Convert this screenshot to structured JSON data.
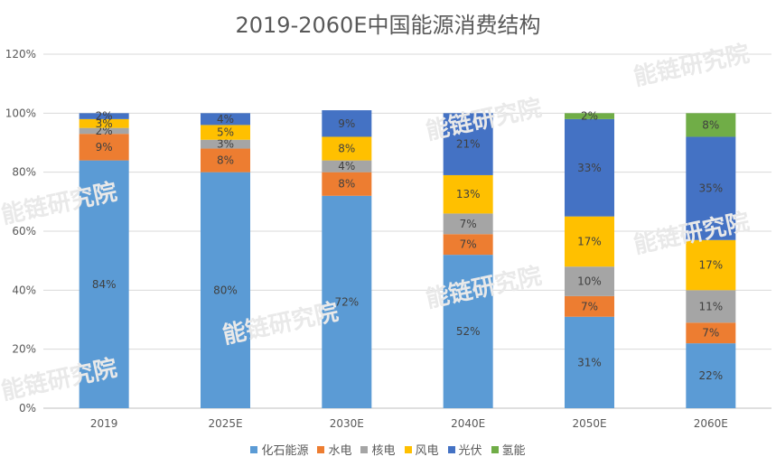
{
  "watermark_text": "能链研究院",
  "chart_data": {
    "type": "bar",
    "stacked": true,
    "title": "2019-2060E中国能源消费结构",
    "categories": [
      "2019",
      "2025E",
      "2030E",
      "2040E",
      "2050E",
      "2060E"
    ],
    "ylim": [
      0,
      120
    ],
    "yticks": [
      "0%",
      "20%",
      "40%",
      "60%",
      "80%",
      "100%",
      "120%"
    ],
    "legend_position": "bottom",
    "grid": true,
    "series": [
      {
        "name": "化石能源",
        "color": "#5b9bd5",
        "values": [
          84,
          80,
          72,
          52,
          31,
          22
        ],
        "labels": [
          "84%",
          "80%",
          "72%",
          "52%",
          "31%",
          "22%"
        ]
      },
      {
        "name": "水电",
        "color": "#ed7d31",
        "values": [
          9,
          8,
          8,
          7,
          7,
          7
        ],
        "labels": [
          "9%",
          "8%",
          "8%",
          "7%",
          "7%",
          "7%"
        ]
      },
      {
        "name": "核电",
        "color": "#a5a5a5",
        "values": [
          2,
          3,
          4,
          7,
          10,
          11
        ],
        "labels": [
          "2%",
          "3%",
          "4%",
          "7%",
          "10%",
          "11%"
        ]
      },
      {
        "name": "风电",
        "color": "#ffc000",
        "values": [
          3,
          5,
          8,
          13,
          17,
          17
        ],
        "labels": [
          "3%",
          "5%",
          "8%",
          "13%",
          "17%",
          "17%"
        ]
      },
      {
        "name": "光伏",
        "color": "#4472c4",
        "values": [
          2,
          4,
          9,
          21,
          33,
          35
        ],
        "labels": [
          "2%",
          "4%",
          "9%",
          "21%",
          "33%",
          "35%"
        ]
      },
      {
        "name": "氢能",
        "color": "#70ad47",
        "values": [
          0,
          0,
          0,
          0,
          2,
          8
        ],
        "labels": [
          "",
          "",
          "",
          "",
          "2%",
          "8%"
        ]
      }
    ]
  }
}
